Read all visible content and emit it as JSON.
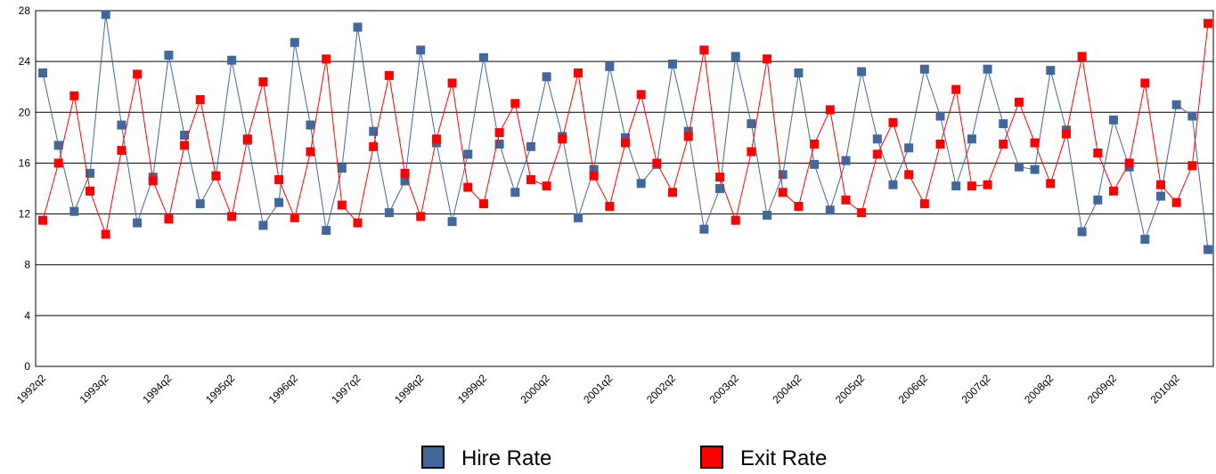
{
  "chart_data": {
    "type": "line",
    "categories": [
      "1992q2",
      null,
      null,
      null,
      "1993q2",
      null,
      null,
      null,
      "1994q2",
      null,
      null,
      null,
      "1995q2",
      null,
      null,
      null,
      "1996q2",
      null,
      null,
      null,
      "1997q2",
      null,
      null,
      null,
      "1998q2",
      null,
      null,
      null,
      "1999q2",
      null,
      null,
      null,
      "2000q2",
      null,
      null,
      null,
      "2001q2",
      null,
      null,
      null,
      "2002q2",
      null,
      null,
      null,
      "2003q2",
      null,
      null,
      null,
      "2004q2",
      null,
      null,
      null,
      "2005q2",
      null,
      null,
      null,
      "2006q2",
      null,
      null,
      null,
      "2007q2",
      null,
      null,
      null,
      "2008q2",
      null,
      null,
      null,
      "2009q2",
      null,
      null,
      null,
      "2010q2",
      null,
      null
    ],
    "series": [
      {
        "name": "Hire Rate",
        "color": "#41689c",
        "values": [
          23.1,
          17.4,
          12.2,
          15.2,
          27.7,
          19.0,
          11.3,
          14.9,
          24.5,
          18.2,
          12.8,
          15.0,
          24.1,
          17.8,
          11.1,
          12.9,
          25.5,
          19.0,
          10.7,
          15.6,
          26.7,
          18.5,
          12.1,
          14.6,
          24.9,
          17.6,
          11.4,
          16.7,
          24.3,
          17.5,
          13.7,
          17.3,
          22.8,
          18.1,
          11.7,
          15.5,
          23.6,
          18.0,
          14.4,
          15.9,
          23.8,
          18.5,
          10.8,
          14.0,
          24.4,
          19.1,
          11.9,
          15.1,
          23.1,
          15.9,
          12.3,
          16.2,
          23.2,
          17.9,
          14.3,
          17.2,
          23.4,
          19.7,
          14.2,
          17.9,
          23.4,
          19.1,
          15.7,
          15.5,
          23.3,
          18.6,
          10.6,
          13.1,
          19.4,
          15.7,
          10.0,
          13.4,
          20.6,
          19.7,
          9.2
        ]
      },
      {
        "name": "Exit Rate",
        "color": "#ff0000",
        "values": [
          11.5,
          16.0,
          21.3,
          13.8,
          10.4,
          17.0,
          23.0,
          14.6,
          11.6,
          17.4,
          21.0,
          15.0,
          11.8,
          17.9,
          22.4,
          14.7,
          11.7,
          16.9,
          24.2,
          12.7,
          11.3,
          17.3,
          22.9,
          15.2,
          11.8,
          17.9,
          22.3,
          14.1,
          12.8,
          18.4,
          20.7,
          14.7,
          14.2,
          17.9,
          23.1,
          15.0,
          12.6,
          17.6,
          21.4,
          16.0,
          13.7,
          18.1,
          24.9,
          14.9,
          11.5,
          16.9,
          24.2,
          13.7,
          12.6,
          17.5,
          20.2,
          13.1,
          12.1,
          16.7,
          19.2,
          15.1,
          12.8,
          17.5,
          21.8,
          14.2,
          14.3,
          17.5,
          20.8,
          17.6,
          14.4,
          18.3,
          24.4,
          16.8,
          13.8,
          16.0,
          22.3,
          14.3,
          12.9,
          15.8,
          27.0
        ]
      }
    ],
    "ylim": [
      0,
      28
    ],
    "yticks": [
      0,
      4,
      8,
      12,
      16,
      20,
      24,
      28
    ],
    "grid": true
  }
}
